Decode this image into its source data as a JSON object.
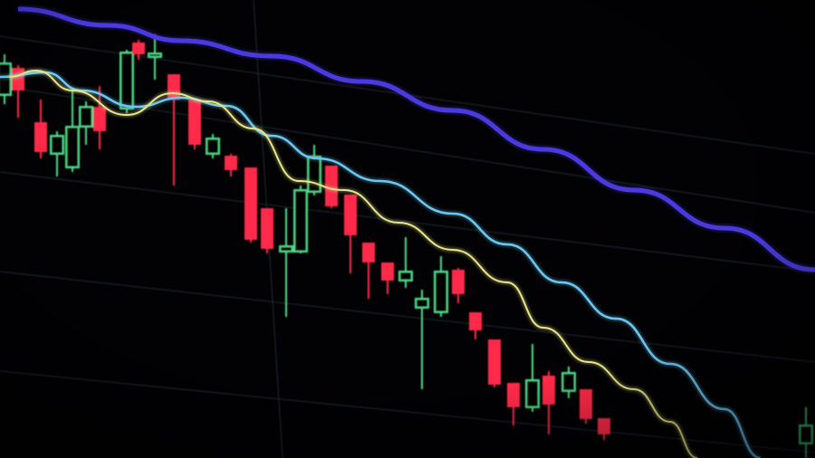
{
  "scene": {
    "subject": "candlestick-price-chart-on-screen",
    "colors": {
      "background": "#020204",
      "bearish_candle": "#ff2a4a",
      "bullish_candle": "#4fe08a",
      "moving_average_slow": "#4a3ae0",
      "moving_average_mid": "#6cc6f0",
      "moving_average_fast": "#e8e48a",
      "grid": "#2a3440"
    }
  }
}
